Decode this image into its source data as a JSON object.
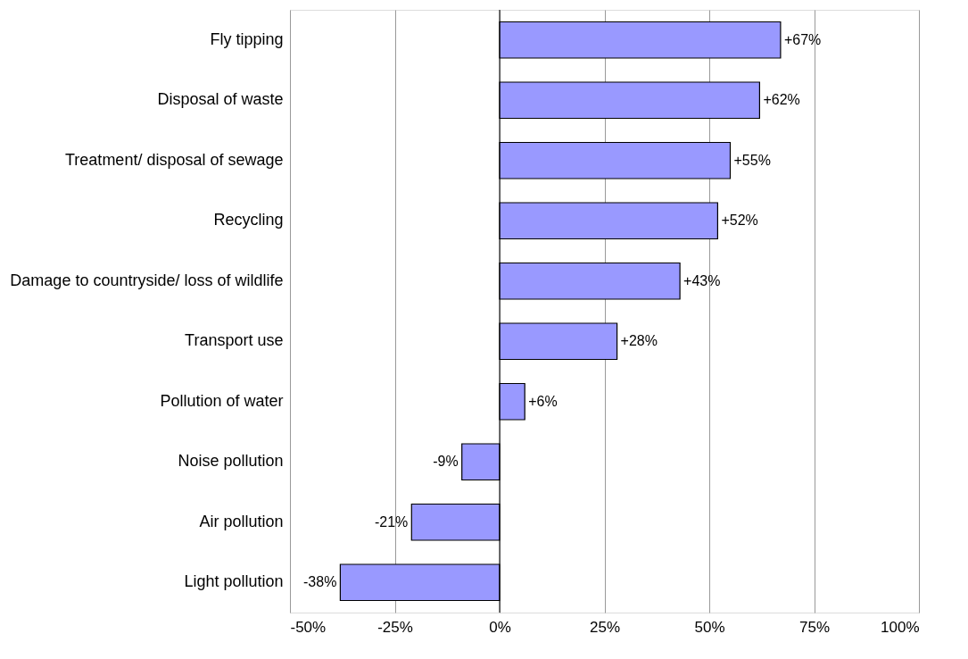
{
  "chart_data": {
    "type": "bar",
    "orientation": "horizontal",
    "categories": [
      "Fly tipping",
      "Disposal of waste",
      "Treatment/ disposal of sewage",
      "Recycling",
      "Damage to countryside/ loss of wildlife",
      "Transport use",
      "Pollution of water",
      "Noise pollution",
      "Air pollution",
      "Light pollution"
    ],
    "values": [
      67,
      62,
      55,
      52,
      43,
      28,
      6,
      -9,
      -21,
      -38
    ],
    "value_labels": [
      "+67%",
      "+62%",
      "+55%",
      "+52%",
      "+43%",
      "+28%",
      "+6%",
      "-9%",
      "-21%",
      "-38%"
    ],
    "color": "#9999ff",
    "xlim": [
      -50,
      100
    ],
    "xticks": [
      {
        "value": -50,
        "label": "-50%"
      },
      {
        "value": -25,
        "label": "-25%"
      },
      {
        "value": 0,
        "label": "0%"
      },
      {
        "value": 25,
        "label": "25%"
      },
      {
        "value": 50,
        "label": "50%"
      },
      {
        "value": 75,
        "label": "75%"
      },
      {
        "value": 100,
        "label": "100%"
      }
    ],
    "ref_lines": [
      {
        "axis": "x",
        "value": 0,
        "color": "#000000"
      }
    ],
    "grid": "x"
  }
}
